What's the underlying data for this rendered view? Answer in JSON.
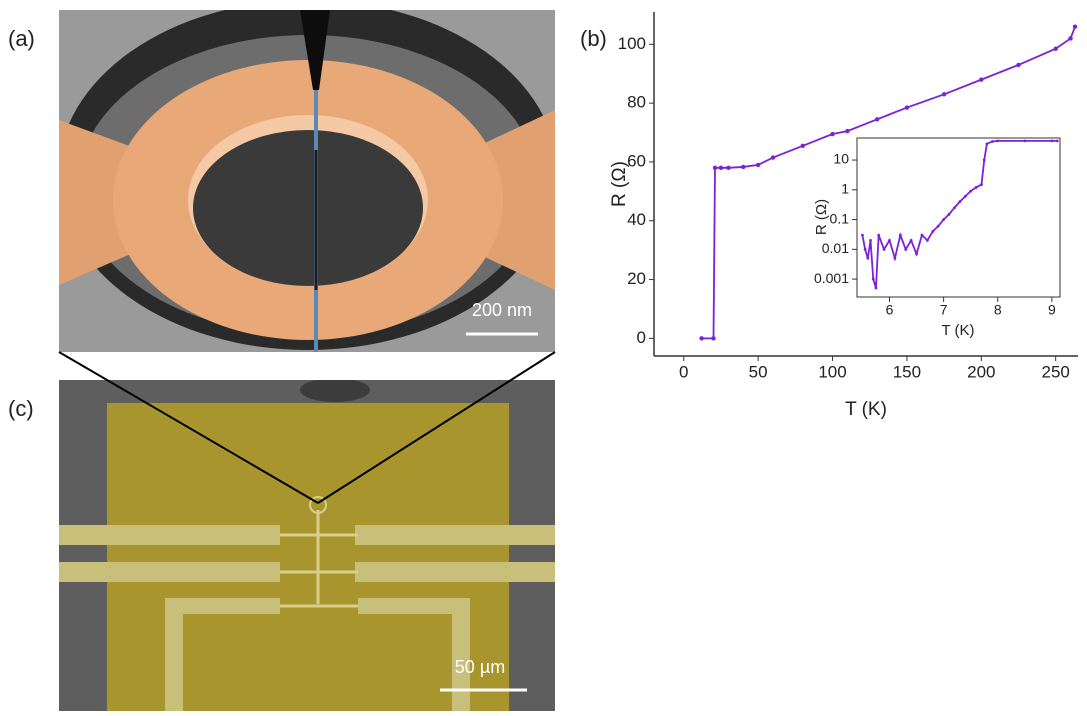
{
  "panels": {
    "a": {
      "label": "(a)",
      "scale_bar": "200 nm"
    },
    "b": {
      "label": "(b)"
    },
    "c": {
      "label": "(c)",
      "scale_bar": "50 µm"
    }
  },
  "chart_data": [
    {
      "type": "line",
      "xlabel": "T (K)",
      "ylabel": "R (Ω)",
      "x": [
        12,
        20,
        21,
        25,
        30,
        40,
        50,
        60,
        80,
        100,
        110,
        130,
        150,
        175,
        200,
        225,
        250,
        260,
        263
      ],
      "series": [
        {
          "color": "#7b22d6",
          "values": [
            0,
            0,
            58,
            58,
            58,
            58.3,
            59,
            61.5,
            65.5,
            69.5,
            70.5,
            74.5,
            78.5,
            83,
            88,
            93,
            98.5,
            102,
            106
          ]
        }
      ],
      "xlim": [
        -20,
        265
      ],
      "ylim": [
        -6,
        111
      ],
      "xticks": [
        0,
        50,
        100,
        150,
        200,
        250
      ],
      "yticks": [
        0,
        20,
        40,
        60,
        80,
        100
      ]
    },
    {
      "type": "line",
      "xlabel": "T (K)",
      "ylabel": "R (Ω)",
      "log_y": true,
      "x": [
        5.5,
        5.55,
        5.6,
        5.65,
        5.7,
        5.75,
        5.8,
        5.9,
        6.0,
        6.1,
        6.2,
        6.3,
        6.4,
        6.5,
        6.6,
        6.7,
        6.8,
        6.9,
        7.0,
        7.1,
        7.2,
        7.3,
        7.4,
        7.5,
        7.6,
        7.7,
        7.75,
        7.8,
        7.9,
        8.0,
        8.5,
        9.0,
        9.1
      ],
      "series": [
        {
          "color": "#7b22d6",
          "values": [
            0.03,
            0.01,
            0.005,
            0.02,
            0.001,
            0.0005,
            0.03,
            0.01,
            0.02,
            0.005,
            0.03,
            0.01,
            0.02,
            0.007,
            0.03,
            0.02,
            0.04,
            0.06,
            0.1,
            0.15,
            0.25,
            0.4,
            0.6,
            0.9,
            1.2,
            1.5,
            10,
            35,
            42,
            44,
            44,
            44,
            44
          ]
        }
      ],
      "xlim": [
        5.4,
        9.15
      ],
      "ylim": [
        0.00025,
        55
      ],
      "xticks": [
        6,
        7,
        8,
        9
      ],
      "yticks": [
        0.001,
        0.01,
        0.1,
        1,
        10
      ]
    }
  ]
}
